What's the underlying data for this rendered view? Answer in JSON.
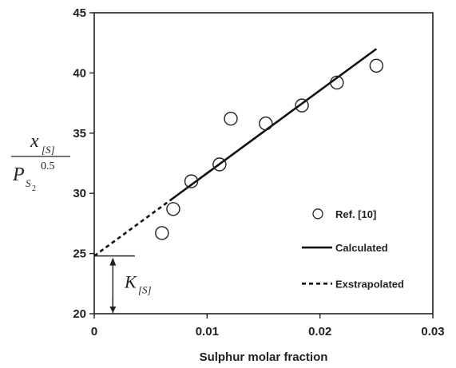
{
  "chart_data": {
    "type": "scatter",
    "xlabel": "Sulphur molar fraction",
    "ylabel": {
      "numerator": "x",
      "numerator_sub": "[S]",
      "denominator": "P",
      "denominator_sub": "S",
      "denominator_subsub": "2",
      "denominator_sup": "0.5"
    },
    "xlim": [
      0,
      0.03
    ],
    "ylim": [
      20,
      45
    ],
    "x_ticks": [
      0,
      0.01,
      0.02,
      0.03
    ],
    "x_tick_labels": [
      "0",
      "0.01",
      "0.02",
      "0.03"
    ],
    "y_ticks": [
      20,
      25,
      30,
      35,
      40,
      45
    ],
    "y_tick_labels": [
      "20",
      "25",
      "30",
      "35",
      "40",
      "45"
    ],
    "grid": false,
    "legend_position": "right",
    "series": [
      {
        "name": "Ref. [10]",
        "kind": "markers",
        "marker": "open-circle",
        "x": [
          0.006,
          0.007,
          0.0086,
          0.0111,
          0.0121,
          0.0152,
          0.0184,
          0.0215,
          0.025
        ],
        "y": [
          26.7,
          28.7,
          31.0,
          32.4,
          36.2,
          35.8,
          37.3,
          39.2,
          40.6
        ]
      },
      {
        "name": "Calculated",
        "kind": "line",
        "style": "solid",
        "x": [
          0.0067,
          0.025
        ],
        "y": [
          29.4,
          42.0
        ]
      },
      {
        "name": "Exstrapolated",
        "kind": "line",
        "style": "dashed",
        "x": [
          0,
          0.0067
        ],
        "y": [
          24.8,
          29.4
        ]
      }
    ],
    "annotation": {
      "label": "K",
      "label_sub": "[S]",
      "value": 24.8
    }
  }
}
